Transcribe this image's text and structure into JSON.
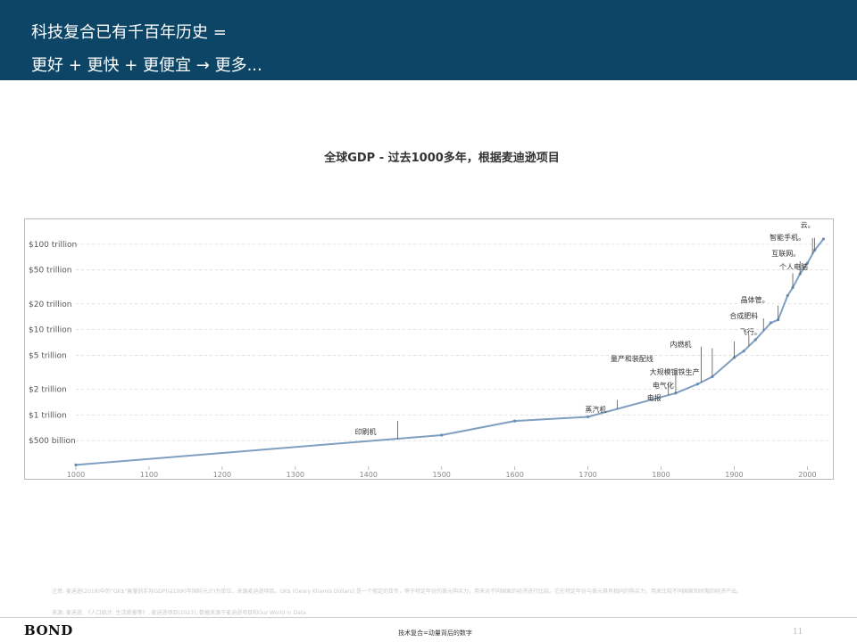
{
  "header": {
    "line1": "科技复合已有千百年历史 =",
    "line2": "更好 + 更快 + 更便宜 → 更多..."
  },
  "colors": {
    "header_bg": "#0d4566",
    "line": "#7f9fc0",
    "axis_text": "#555555",
    "grid": "#d9d9d9"
  },
  "chart_data": {
    "type": "line",
    "title": "全球GDP - 过去1000多年，根据麦迪逊项目",
    "y_scale": "log",
    "ylim": [
      0.25,
      150
    ],
    "xlim": [
      1000,
      2030
    ],
    "y_ticks": [
      {
        "value": 0.5,
        "label": "$500 billion"
      },
      {
        "value": 1,
        "label": "$1 trillion"
      },
      {
        "value": 2,
        "label": "$2 trillion"
      },
      {
        "value": 5,
        "label": "$5 trillion"
      },
      {
        "value": 10,
        "label": "$10 trillion"
      },
      {
        "value": 20,
        "label": "$20 trillion"
      },
      {
        "value": 50,
        "label": "$50 trillion"
      },
      {
        "value": 100,
        "label": "$100 trillion"
      }
    ],
    "x_ticks": [
      "1000",
      "1100",
      "1200",
      "1300",
      "1400",
      "1500",
      "1600",
      "1700",
      "1800",
      "1900",
      "2000"
    ],
    "grid": true,
    "series": [
      {
        "x": [
          1000,
          1500,
          1600,
          1700,
          1820,
          1850,
          1870,
          1900,
          1913,
          1929,
          1950,
          1960,
          1973,
          1980,
          1990,
          2000,
          2010,
          2022
        ],
        "y": [
          0.26,
          0.58,
          0.85,
          0.95,
          1.8,
          2.3,
          2.8,
          4.7,
          5.6,
          7.6,
          12,
          13,
          25,
          31,
          45,
          60,
          85,
          115
        ]
      }
    ],
    "annotations": [
      {
        "label": "印刷机",
        "x": 1440
      },
      {
        "label": "蒸汽机",
        "x": 1740
      },
      {
        "label": "电报",
        "x": 1810
      },
      {
        "label": "电气化",
        "x": 1820
      },
      {
        "label": "大规模钢铁生产",
        "x": 1855
      },
      {
        "label": "量产和装配线",
        "x": 1870
      },
      {
        "label": "内燃机",
        "x": 1900
      },
      {
        "label": "飞行。",
        "x": 1920
      },
      {
        "label": "合成肥料",
        "x": 1940
      },
      {
        "label": "晶体管。",
        "x": 1960
      },
      {
        "label": "个人电脑",
        "x": 1980
      },
      {
        "label": "互联网。",
        "x": 1990
      },
      {
        "label": "智能手机。",
        "x": 2007
      },
      {
        "label": "云。",
        "x": 2010
      }
    ]
  },
  "notes": {
    "note1": "注意: 麦迪逊(2018)中的“GK$”衡量的实际GDP(以1990年国际元计)为单位，来源麦迪逊项目。GK$ (Geary Khamis Dollars) 是一个假定的货币，等于特定年份的美元购买力，用来对不同国家的经济进行比较。它在特定年份与美元具有相同的购买力，用来比较不同国家和时期的经济产出。",
    "note2": "来源: 麦迪逊, 《人口统计, 生活质量等》, 麦迪逊项目(2023), 数据来源于麦迪逊项目和Our World in Data"
  },
  "footer": {
    "brand": "BOND",
    "center": "技术复合=动量背后的数字",
    "page": "11"
  }
}
